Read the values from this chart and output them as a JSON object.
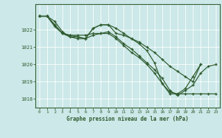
{
  "title": "Graphe pression niveau de la mer (hPa)",
  "bg_color": "#cce8e8",
  "line_color": "#2d5a2d",
  "grid_color": "#b8d8d8",
  "xlim": [
    -0.5,
    23.5
  ],
  "ylim": [
    1017.5,
    1023.5
  ],
  "yticks": [
    1018,
    1019,
    1020,
    1021,
    1022
  ],
  "xticks": [
    0,
    1,
    2,
    3,
    4,
    5,
    6,
    7,
    8,
    9,
    10,
    11,
    12,
    13,
    14,
    15,
    16,
    17,
    18,
    19,
    20,
    21,
    22,
    23
  ],
  "series": [
    [
      1022.8,
      1022.8,
      1022.3,
      1021.8,
      1021.7,
      1021.6,
      1021.5,
      1022.1,
      1022.3,
      1022.3,
      1021.8,
      1021.7,
      1021.5,
      1021.2,
      1020.8,
      1020.1,
      1018.9,
      1018.3,
      1018.3,
      1018.6,
      1019.3,
      1020.0,
      null,
      null
    ],
    [
      1022.8,
      1022.8,
      1022.3,
      1021.8,
      1021.7,
      1021.7,
      1021.7,
      1021.8,
      1021.8,
      1021.8,
      1021.5,
      1021.1,
      1020.7,
      1020.4,
      1020.0,
      1019.5,
      1018.9,
      1018.4,
      1018.3,
      1018.3,
      1018.3,
      1018.3,
      1018.3,
      1018.3
    ],
    [
      1022.8,
      1022.8,
      1022.5,
      1021.9,
      1021.6,
      1021.6,
      1021.5,
      1022.1,
      1022.3,
      1022.3,
      1022.1,
      1021.8,
      1021.5,
      1021.3,
      1021.0,
      1020.7,
      1020.3,
      1019.9,
      1019.6,
      1019.3,
      1019.0,
      1020.0,
      null,
      null
    ],
    [
      1022.8,
      1022.8,
      1022.2,
      1021.8,
      1021.6,
      1021.5,
      1021.5,
      1021.7,
      1021.8,
      1021.9,
      1021.6,
      1021.2,
      1020.9,
      1020.5,
      1020.1,
      1019.7,
      1019.2,
      1018.5,
      1018.2,
      1018.5,
      1018.8,
      1019.5,
      1019.9,
      1020.0
    ]
  ]
}
